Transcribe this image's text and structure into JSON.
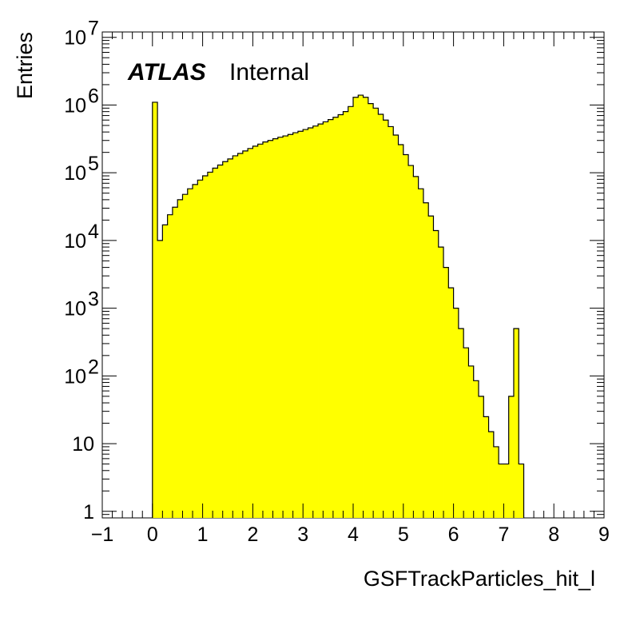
{
  "chart_data": {
    "type": "bar",
    "xlabel": "GSFTrackParticles_hit_l",
    "ylabel": "Entries",
    "xlim": [
      -1,
      9
    ],
    "ylim": [
      0.8,
      12000000
    ],
    "y_scale": "log",
    "bin_width": 0.1,
    "grid": false,
    "bar_color": "#ffff00",
    "line_color": "#000000",
    "x_tick_labels": [
      "−1",
      "0",
      "1",
      "2",
      "3",
      "4",
      "5",
      "6",
      "7",
      "8",
      "9"
    ],
    "y_tick_labels": [
      {
        "base": "1",
        "exp": ""
      },
      {
        "base": "10",
        "exp": ""
      },
      {
        "base": "10",
        "exp": "2"
      },
      {
        "base": "10",
        "exp": "3"
      },
      {
        "base": "10",
        "exp": "4"
      },
      {
        "base": "10",
        "exp": "5"
      },
      {
        "base": "10",
        "exp": "6"
      },
      {
        "base": "10",
        "exp": "7"
      }
    ],
    "annotations": {
      "experiment": "ATLAS",
      "status": "Internal"
    },
    "bins": {
      "x_low": [
        0.0,
        0.1,
        0.2,
        0.3,
        0.4,
        0.5,
        0.6,
        0.7,
        0.8,
        0.9,
        1.0,
        1.1,
        1.2,
        1.3,
        1.4,
        1.5,
        1.6,
        1.7,
        1.8,
        1.9,
        2.0,
        2.1,
        2.2,
        2.3,
        2.4,
        2.5,
        2.6,
        2.7,
        2.8,
        2.9,
        3.0,
        3.1,
        3.2,
        3.3,
        3.4,
        3.5,
        3.6,
        3.7,
        3.8,
        3.9,
        4.0,
        4.1,
        4.2,
        4.3,
        4.4,
        4.5,
        4.6,
        4.7,
        4.8,
        4.9,
        5.0,
        5.1,
        5.2,
        5.3,
        5.4,
        5.5,
        5.6,
        5.7,
        5.8,
        5.9,
        6.0,
        6.1,
        6.2,
        6.3,
        6.4,
        6.5,
        6.6,
        6.7,
        6.8,
        6.9,
        7.0,
        7.1,
        7.2,
        7.3
      ],
      "counts": [
        1100000,
        10000,
        17000,
        24000,
        31000,
        40000,
        48000,
        58000,
        67000,
        78000,
        90000,
        102000,
        117000,
        130000,
        146000,
        160000,
        178000,
        193000,
        210000,
        228000,
        247000,
        265000,
        285000,
        300000,
        318000,
        335000,
        350000,
        368000,
        390000,
        410000,
        435000,
        460000,
        490000,
        525000,
        565000,
        610000,
        660000,
        720000,
        800000,
        950000,
        1300000,
        1400000,
        1300000,
        1050000,
        900000,
        730000,
        600000,
        480000,
        360000,
        260000,
        185000,
        128000,
        88000,
        58000,
        36000,
        23000,
        14000,
        8000,
        4000,
        2000,
        1000,
        500,
        260,
        140,
        85,
        50,
        25,
        15,
        9,
        5,
        5,
        50,
        500,
        5
      ]
    }
  }
}
